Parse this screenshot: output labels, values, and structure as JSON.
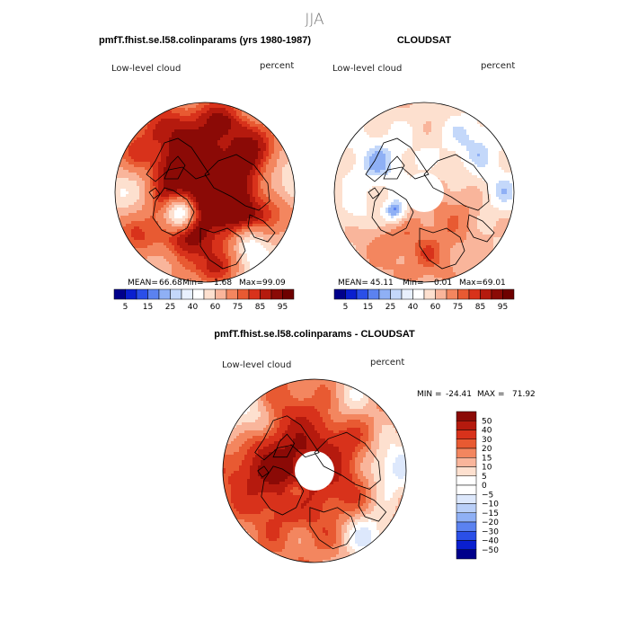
{
  "figure": {
    "title": "JJA"
  },
  "colors": {
    "abs_palette": [
      "#00008b",
      "#0a1fcf",
      "#2a4fe8",
      "#5b82f0",
      "#8fb0f5",
      "#c4d8fa",
      "#ffffff",
      "#fde0cf",
      "#f9b59b",
      "#f3865f",
      "#e85a32",
      "#d8321b",
      "#b51a0e",
      "#8b0a06"
    ],
    "diff_palette": [
      "#00008b",
      "#0a1fcf",
      "#2a4fe8",
      "#5b82f0",
      "#8fb0f5",
      "#b9cff8",
      "#dde8fc",
      "#ffffff",
      "#fde0cf",
      "#f9b59b",
      "#f3865f",
      "#e85a32",
      "#d8321b",
      "#b51a0e",
      "#8b0a06"
    ],
    "coastline": "#000000"
  },
  "chart_data": [
    {
      "type": "heatmap",
      "projection": "north-polar-stereographic",
      "title": "pmfT.fhist.se.l58.colinparams (yrs 1980-1987)",
      "left_label": "Low-level cloud",
      "right_label": "percent",
      "stats": {
        "mean_label": "MEAN=",
        "mean": "66.68",
        "min_label": "Min=",
        "min": "1.68",
        "max_label": "Max=",
        "max": "99.09"
      },
      "levels": [
        5,
        10,
        15,
        20,
        25,
        30,
        40,
        50,
        60,
        70,
        75,
        80,
        85,
        90,
        95
      ],
      "colorbar_labels": [
        "5",
        "15",
        "25",
        "40",
        "60",
        "75",
        "85",
        "95"
      ],
      "pattern": "model"
    },
    {
      "type": "heatmap",
      "projection": "north-polar-stereographic",
      "title": "CLOUDSAT",
      "left_label": "Low-level cloud",
      "right_label": "percent",
      "stats": {
        "mean_label": "MEAN=",
        "mean": "45.11",
        "min_label": "Min=",
        "min": "0.01",
        "max_label": "Max=",
        "max": "69.01"
      },
      "levels": [
        5,
        10,
        15,
        20,
        25,
        30,
        40,
        50,
        60,
        70,
        75,
        80,
        85,
        90,
        95
      ],
      "colorbar_labels": [
        "5",
        "15",
        "25",
        "40",
        "60",
        "75",
        "85",
        "95"
      ],
      "pattern": "obs",
      "missing_region": "pole"
    },
    {
      "type": "heatmap",
      "projection": "north-polar-stereographic",
      "title": "pmfT.fhist.se.l58.colinparams - CLOUDSAT",
      "left_label": "Low-level cloud",
      "right_label": "percent",
      "stats": {
        "min_label": "MIN =",
        "min": "-24.41",
        "max_label": "MAX =",
        "max": "71.92"
      },
      "levels": [
        -50,
        -40,
        -30,
        -20,
        -15,
        -10,
        -5,
        0,
        5,
        10,
        15,
        20,
        30,
        40,
        50
      ],
      "colorbar_labels": [
        "50",
        "40",
        "30",
        "20",
        "15",
        "10",
        "5",
        "0",
        "−5",
        "−10",
        "−15",
        "−20",
        "−30",
        "−40",
        "−50"
      ],
      "pattern": "diff",
      "missing_region": "pole"
    }
  ]
}
